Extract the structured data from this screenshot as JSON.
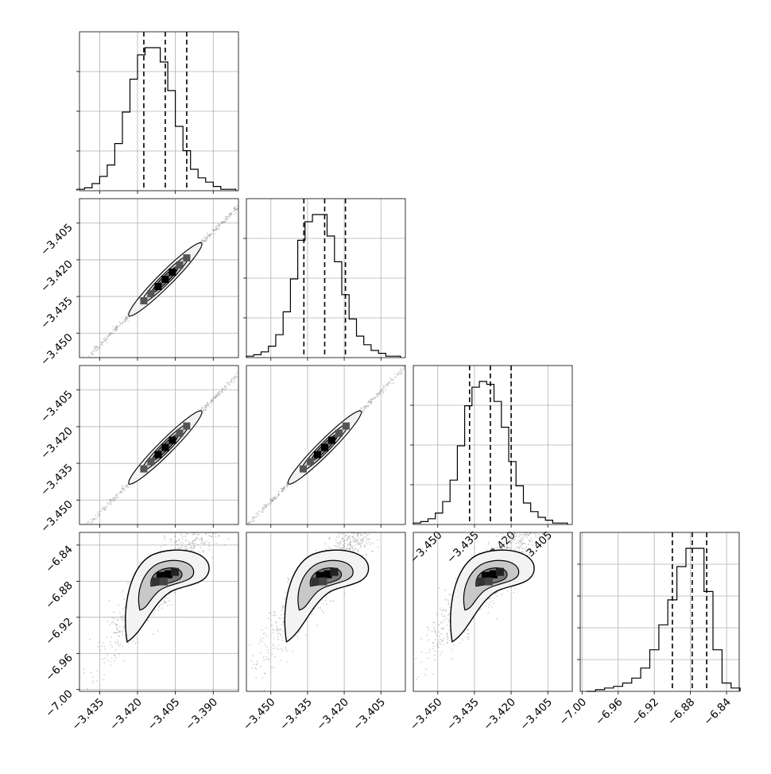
{
  "chart_data": [
    {
      "type": "histogram",
      "panel": "row1-col1",
      "x_range": [
        -3.443,
        -3.38
      ],
      "bins_x": [
        -3.4425,
        -3.4395,
        -3.4365,
        -3.4335,
        -3.4305,
        -3.4275,
        -3.4245,
        -3.4215,
        -3.4185,
        -3.4155,
        -3.4125,
        -3.4095,
        -3.4065,
        -3.4035,
        -3.4005,
        -3.3975,
        -3.3945,
        -3.3915,
        -3.3885,
        -3.3855,
        -3.3825
      ],
      "counts": [
        1,
        2,
        5,
        10,
        18,
        33,
        55,
        78,
        95,
        100,
        100,
        90,
        70,
        45,
        28,
        15,
        9,
        6,
        3,
        1,
        1
      ],
      "quantile_lines": [
        -3.4175,
        -3.409,
        -3.4005
      ],
      "x_ticks": [
        -3.435,
        -3.42,
        -3.405,
        -3.39
      ],
      "x_tick_labels": [],
      "y_tick_count": 3
    },
    {
      "type": "histogram",
      "panel": "row2-col2",
      "x_range": [
        -3.46,
        -3.395
      ],
      "bins_x": [
        -3.4585,
        -3.4555,
        -3.4525,
        -3.4495,
        -3.4465,
        -3.4435,
        -3.4405,
        -3.4375,
        -3.4345,
        -3.4315,
        -3.4285,
        -3.4255,
        -3.4225,
        -3.4195,
        -3.4165,
        -3.4135,
        -3.4105,
        -3.4075,
        -3.4045,
        -3.4015,
        -3.3985
      ],
      "counts": [
        1,
        2,
        4,
        8,
        16,
        32,
        55,
        82,
        95,
        100,
        100,
        85,
        67,
        44,
        27,
        15,
        9,
        5,
        3,
        1,
        1
      ],
      "quantile_lines": [
        -3.4365,
        -3.428,
        -3.4195
      ],
      "x_ticks": [
        -3.45,
        -3.435,
        -3.42,
        -3.405
      ],
      "x_tick_labels": [],
      "y_tick_count": 3
    },
    {
      "type": "histogram",
      "panel": "row3-col3",
      "x_range": [
        -3.46,
        -3.395
      ],
      "bins_x": [
        -3.4585,
        -3.4555,
        -3.4525,
        -3.4495,
        -3.4465,
        -3.4435,
        -3.4405,
        -3.4375,
        -3.4345,
        -3.4315,
        -3.4285,
        -3.4255,
        -3.4225,
        -3.4195,
        -3.4165,
        -3.4135,
        -3.4105,
        -3.4075,
        -3.4045,
        -3.4015,
        -3.3985
      ],
      "counts": [
        1,
        2,
        4,
        8,
        16,
        31,
        55,
        83,
        96,
        100,
        98,
        86,
        68,
        44,
        27,
        15,
        9,
        5,
        3,
        1,
        1
      ],
      "quantile_lines": [
        -3.437,
        -3.4285,
        -3.42
      ],
      "x_ticks": [
        -3.45,
        -3.435,
        -3.42,
        -3.405
      ],
      "x_tick_labels": [
        "−3.450",
        "−3.435",
        "−3.420",
        "−3.405"
      ],
      "y_tick_count": 3
    },
    {
      "type": "histogram",
      "panel": "row4-col4",
      "x_range": [
        -7.002,
        -6.826
      ],
      "bins_x": [
        -6.99,
        -6.98,
        -6.97,
        -6.96,
        -6.95,
        -6.94,
        -6.93,
        -6.92,
        -6.91,
        -6.9,
        -6.89,
        -6.88,
        -6.87,
        -6.86,
        -6.85,
        -6.84,
        -6.83
      ],
      "counts": [
        0,
        1,
        2,
        3,
        5,
        8,
        14,
        25,
        40,
        55,
        75,
        86,
        86,
        60,
        25,
        5,
        2
      ],
      "quantile_lines": [
        -6.9,
        -6.878,
        -6.862
      ],
      "x_ticks": [
        -7.0,
        -6.96,
        -6.92,
        -6.88,
        -6.84
      ],
      "x_tick_labels": [
        "−7.00",
        "−6.96",
        "−6.92",
        "−6.88",
        "−6.84"
      ],
      "y_tick_count": 4
    },
    {
      "type": "scatter-density",
      "panel": "row2-col1",
      "x_range": [
        -3.443,
        -3.38
      ],
      "y_range": [
        -3.46,
        -3.395
      ],
      "x_ticks": [
        -3.435,
        -3.42,
        -3.405,
        -3.39
      ],
      "y_ticks": [
        -3.405,
        -3.42,
        -3.435,
        -3.45
      ],
      "y_tick_labels": [
        "−3.405",
        "−3.420",
        "−3.435",
        "−3.450"
      ],
      "center": [
        -3.409,
        -3.428
      ],
      "x_tick_labels": []
    },
    {
      "type": "scatter-density",
      "panel": "row3-col1",
      "x_range": [
        -3.443,
        -3.38
      ],
      "y_range": [
        -3.46,
        -3.395
      ],
      "x_ticks": [
        -3.435,
        -3.42,
        -3.405,
        -3.39
      ],
      "y_ticks": [
        -3.405,
        -3.42,
        -3.435,
        -3.45
      ],
      "y_tick_labels": [
        "−3.405",
        "−3.420",
        "−3.435",
        "−3.450"
      ],
      "center": [
        -3.409,
        -3.4285
      ],
      "x_tick_labels": []
    },
    {
      "type": "scatter-density",
      "panel": "row3-col2",
      "x_range": [
        -3.46,
        -3.395
      ],
      "y_range": [
        -3.46,
        -3.395
      ],
      "x_ticks": [
        -3.45,
        -3.435,
        -3.42,
        -3.405
      ],
      "y_ticks": [],
      "center": [
        -3.428,
        -3.4285
      ],
      "x_tick_labels": []
    },
    {
      "type": "scatter-density",
      "panel": "row4-col1",
      "x_range": [
        -3.443,
        -3.38
      ],
      "y_range": [
        -7.002,
        -6.826
      ],
      "x_ticks": [
        -3.435,
        -3.42,
        -3.405,
        -3.39
      ],
      "x_tick_labels": [
        "−3.435",
        "−3.420",
        "−3.405",
        "−3.390"
      ],
      "y_ticks": [
        -6.84,
        -6.88,
        -6.92,
        -6.96,
        -7.0
      ],
      "y_tick_labels": [
        "−6.84",
        "−6.88",
        "−6.92",
        "−6.96",
        "−7.00"
      ],
      "center": [
        -3.409,
        -6.875
      ]
    },
    {
      "type": "scatter-density",
      "panel": "row4-col2",
      "x_range": [
        -3.46,
        -3.395
      ],
      "y_range": [
        -7.002,
        -6.826
      ],
      "x_ticks": [
        -3.45,
        -3.435,
        -3.42,
        -3.405
      ],
      "x_tick_labels": [
        "−3.450",
        "−3.435",
        "−3.420",
        "−3.405"
      ],
      "y_ticks": [],
      "center": [
        -3.428,
        -6.875
      ]
    },
    {
      "type": "scatter-density",
      "panel": "row4-col3",
      "x_range": [
        -3.46,
        -3.395
      ],
      "y_range": [
        -7.002,
        -6.826
      ],
      "x_ticks": [
        -3.45,
        -3.435,
        -3.42,
        -3.405
      ],
      "x_tick_labels": [
        "−3.450",
        "−3.435",
        "−3.420",
        "−3.405"
      ],
      "y_ticks": [],
      "center": [
        -3.4285,
        -6.875
      ]
    }
  ]
}
